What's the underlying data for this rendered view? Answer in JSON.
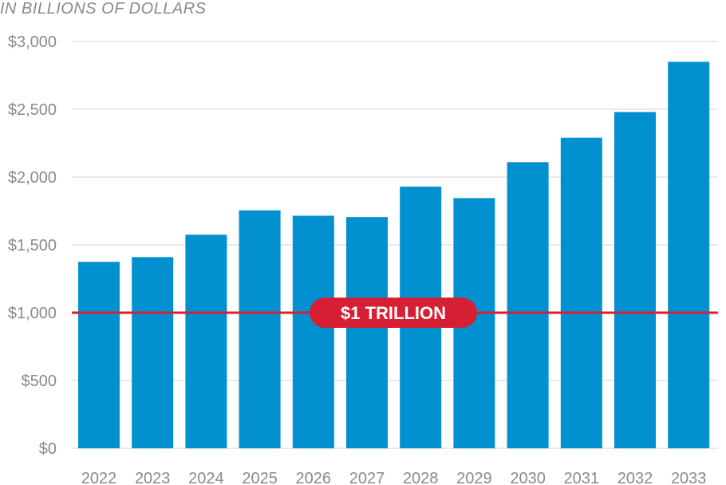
{
  "units_label": "IN BILLIONS OF DOLLARS",
  "colors": {
    "bar": "#0291d0",
    "reference": "#d71f33",
    "grid": "#e3e3e3",
    "tick_text": "#8a8a8a"
  },
  "chart_data": {
    "type": "bar",
    "categories": [
      "2022",
      "2023",
      "2024",
      "2025",
      "2026",
      "2027",
      "2028",
      "2029",
      "2030",
      "2031",
      "2032",
      "2033"
    ],
    "values": [
      1375,
      1410,
      1575,
      1755,
      1715,
      1705,
      1930,
      1845,
      2110,
      2290,
      2480,
      2850
    ],
    "ylim": [
      0,
      3000
    ],
    "yticks": [
      0,
      500,
      1000,
      1500,
      2000,
      2500,
      3000
    ],
    "ytick_labels": [
      "$0",
      "$500",
      "$1,000",
      "$1,500",
      "$2,000",
      "$2,500",
      "$3,000"
    ],
    "grid": true,
    "reference_line": {
      "value": 1000,
      "label": "$1 TRILLION"
    }
  }
}
